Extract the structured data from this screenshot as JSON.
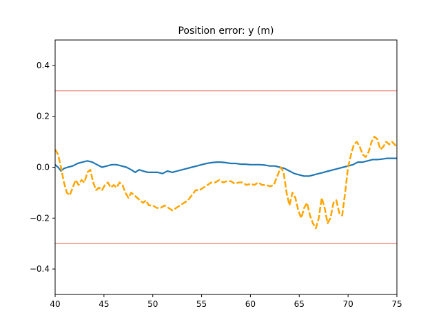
{
  "chart_data": {
    "type": "line",
    "title": "Position error: y (m)",
    "xlabel": "",
    "ylabel": "",
    "xlim": [
      40,
      75
    ],
    "ylim": [
      -0.5,
      0.5
    ],
    "x_ticks": [
      40,
      45,
      50,
      55,
      60,
      65,
      70,
      75
    ],
    "x_tick_labels": [
      "40",
      "45",
      "50",
      "55",
      "60",
      "65",
      "70",
      "75"
    ],
    "y_ticks": [
      -0.4,
      -0.2,
      0.0,
      0.2,
      0.4
    ],
    "y_tick_labels": [
      "−0.4",
      "−0.2",
      "0.0",
      "0.2",
      "0.4"
    ],
    "grid": false,
    "legend": "none",
    "reference_lines": [
      {
        "y": 0.3,
        "color": "#e8695a"
      },
      {
        "y": -0.3,
        "color": "#e8695a"
      }
    ],
    "series": [
      {
        "color": "#1f77b4",
        "style": "solid",
        "points": [
          [
            40.0,
            0.01
          ],
          [
            40.3,
            0.0
          ],
          [
            40.6,
            -0.015
          ],
          [
            40.9,
            -0.005
          ],
          [
            41.3,
            0.0
          ],
          [
            41.8,
            0.005
          ],
          [
            42.3,
            0.015
          ],
          [
            42.8,
            0.02
          ],
          [
            43.3,
            0.025
          ],
          [
            43.8,
            0.02
          ],
          [
            44.3,
            0.01
          ],
          [
            44.8,
            0.0
          ],
          [
            45.3,
            0.005
          ],
          [
            45.8,
            0.01
          ],
          [
            46.3,
            0.01
          ],
          [
            46.8,
            0.005
          ],
          [
            47.3,
            0.0
          ],
          [
            47.8,
            -0.01
          ],
          [
            48.2,
            -0.02
          ],
          [
            48.6,
            -0.01
          ],
          [
            49.0,
            -0.015
          ],
          [
            49.5,
            -0.02
          ],
          [
            50.0,
            -0.02
          ],
          [
            50.5,
            -0.02
          ],
          [
            51.0,
            -0.025
          ],
          [
            51.5,
            -0.015
          ],
          [
            52.0,
            -0.02
          ],
          [
            52.5,
            -0.015
          ],
          [
            53.0,
            -0.01
          ],
          [
            53.5,
            -0.005
          ],
          [
            54.0,
            0.0
          ],
          [
            54.5,
            0.005
          ],
          [
            55.0,
            0.01
          ],
          [
            55.5,
            0.015
          ],
          [
            56.0,
            0.018
          ],
          [
            56.5,
            0.02
          ],
          [
            57.0,
            0.02
          ],
          [
            57.5,
            0.018
          ],
          [
            58.0,
            0.015
          ],
          [
            58.5,
            0.015
          ],
          [
            59.0,
            0.012
          ],
          [
            59.5,
            0.012
          ],
          [
            60.0,
            0.01
          ],
          [
            60.5,
            0.01
          ],
          [
            61.0,
            0.01
          ],
          [
            61.5,
            0.008
          ],
          [
            62.0,
            0.005
          ],
          [
            62.5,
            0.005
          ],
          [
            63.0,
            0.0
          ],
          [
            63.5,
            -0.005
          ],
          [
            64.0,
            -0.015
          ],
          [
            64.5,
            -0.025
          ],
          [
            65.0,
            -0.03
          ],
          [
            65.5,
            -0.035
          ],
          [
            66.0,
            -0.035
          ],
          [
            66.5,
            -0.03
          ],
          [
            67.0,
            -0.025
          ],
          [
            67.5,
            -0.02
          ],
          [
            68.0,
            -0.015
          ],
          [
            68.5,
            -0.01
          ],
          [
            69.0,
            -0.005
          ],
          [
            69.5,
            0.0
          ],
          [
            70.0,
            0.005
          ],
          [
            70.5,
            0.01
          ],
          [
            71.0,
            0.02
          ],
          [
            71.5,
            0.02
          ],
          [
            72.0,
            0.025
          ],
          [
            72.5,
            0.03
          ],
          [
            73.0,
            0.03
          ],
          [
            73.5,
            0.032
          ],
          [
            74.0,
            0.035
          ],
          [
            74.5,
            0.035
          ],
          [
            75.0,
            0.035
          ]
        ]
      },
      {
        "color": "#ffa500",
        "style": "dashed",
        "points": [
          [
            40.0,
            0.07
          ],
          [
            40.3,
            0.05
          ],
          [
            40.6,
            0.0
          ],
          [
            40.9,
            -0.06
          ],
          [
            41.2,
            -0.1
          ],
          [
            41.5,
            -0.11
          ],
          [
            41.8,
            -0.08
          ],
          [
            42.1,
            -0.05
          ],
          [
            42.4,
            -0.07
          ],
          [
            42.7,
            -0.05
          ],
          [
            43.0,
            -0.06
          ],
          [
            43.3,
            -0.02
          ],
          [
            43.6,
            -0.01
          ],
          [
            43.9,
            -0.06
          ],
          [
            44.2,
            -0.09
          ],
          [
            44.5,
            -0.08
          ],
          [
            44.8,
            -0.09
          ],
          [
            45.1,
            -0.07
          ],
          [
            45.4,
            -0.06
          ],
          [
            45.7,
            -0.08
          ],
          [
            46.0,
            -0.07
          ],
          [
            46.3,
            -0.08
          ],
          [
            46.6,
            -0.06
          ],
          [
            46.9,
            -0.07
          ],
          [
            47.2,
            -0.1
          ],
          [
            47.5,
            -0.12
          ],
          [
            47.8,
            -0.1
          ],
          [
            48.1,
            -0.11
          ],
          [
            48.4,
            -0.12
          ],
          [
            48.7,
            -0.13
          ],
          [
            49.0,
            -0.14
          ],
          [
            49.3,
            -0.13
          ],
          [
            49.6,
            -0.15
          ],
          [
            50.0,
            -0.15
          ],
          [
            50.4,
            -0.16
          ],
          [
            50.8,
            -0.16
          ],
          [
            51.2,
            -0.15
          ],
          [
            51.6,
            -0.16
          ],
          [
            52.0,
            -0.17
          ],
          [
            52.4,
            -0.16
          ],
          [
            52.8,
            -0.15
          ],
          [
            53.2,
            -0.14
          ],
          [
            53.6,
            -0.13
          ],
          [
            54.0,
            -0.11
          ],
          [
            54.4,
            -0.09
          ],
          [
            54.8,
            -0.09
          ],
          [
            55.2,
            -0.08
          ],
          [
            55.6,
            -0.07
          ],
          [
            56.0,
            -0.06
          ],
          [
            56.4,
            -0.06
          ],
          [
            56.8,
            -0.05
          ],
          [
            57.2,
            -0.06
          ],
          [
            57.6,
            -0.055
          ],
          [
            58.0,
            -0.055
          ],
          [
            58.4,
            -0.065
          ],
          [
            58.8,
            -0.06
          ],
          [
            59.2,
            -0.06
          ],
          [
            59.6,
            -0.07
          ],
          [
            60.0,
            -0.065
          ],
          [
            60.4,
            -0.07
          ],
          [
            60.8,
            -0.06
          ],
          [
            61.2,
            -0.07
          ],
          [
            61.6,
            -0.07
          ],
          [
            62.0,
            -0.075
          ],
          [
            62.4,
            -0.07
          ],
          [
            62.8,
            -0.03
          ],
          [
            63.1,
            0.0
          ],
          [
            63.4,
            -0.02
          ],
          [
            63.7,
            -0.1
          ],
          [
            64.0,
            -0.15
          ],
          [
            64.3,
            -0.1
          ],
          [
            64.6,
            -0.12
          ],
          [
            64.9,
            -0.17
          ],
          [
            65.2,
            -0.2
          ],
          [
            65.5,
            -0.16
          ],
          [
            65.8,
            -0.14
          ],
          [
            66.1,
            -0.19
          ],
          [
            66.4,
            -0.22
          ],
          [
            66.7,
            -0.24
          ],
          [
            67.0,
            -0.2
          ],
          [
            67.3,
            -0.12
          ],
          [
            67.6,
            -0.16
          ],
          [
            67.9,
            -0.22
          ],
          [
            68.2,
            -0.2
          ],
          [
            68.5,
            -0.14
          ],
          [
            68.8,
            -0.13
          ],
          [
            69.1,
            -0.18
          ],
          [
            69.4,
            -0.19
          ],
          [
            69.7,
            -0.1
          ],
          [
            70.0,
            0.0
          ],
          [
            70.3,
            0.05
          ],
          [
            70.6,
            0.09
          ],
          [
            70.9,
            0.1
          ],
          [
            71.2,
            0.08
          ],
          [
            71.5,
            0.05
          ],
          [
            71.8,
            0.04
          ],
          [
            72.1,
            0.06
          ],
          [
            72.4,
            0.1
          ],
          [
            72.7,
            0.12
          ],
          [
            73.0,
            0.11
          ],
          [
            73.3,
            0.07
          ],
          [
            73.6,
            0.08
          ],
          [
            73.9,
            0.1
          ],
          [
            74.2,
            0.09
          ],
          [
            74.5,
            0.1
          ],
          [
            75.0,
            0.08
          ]
        ]
      }
    ]
  }
}
